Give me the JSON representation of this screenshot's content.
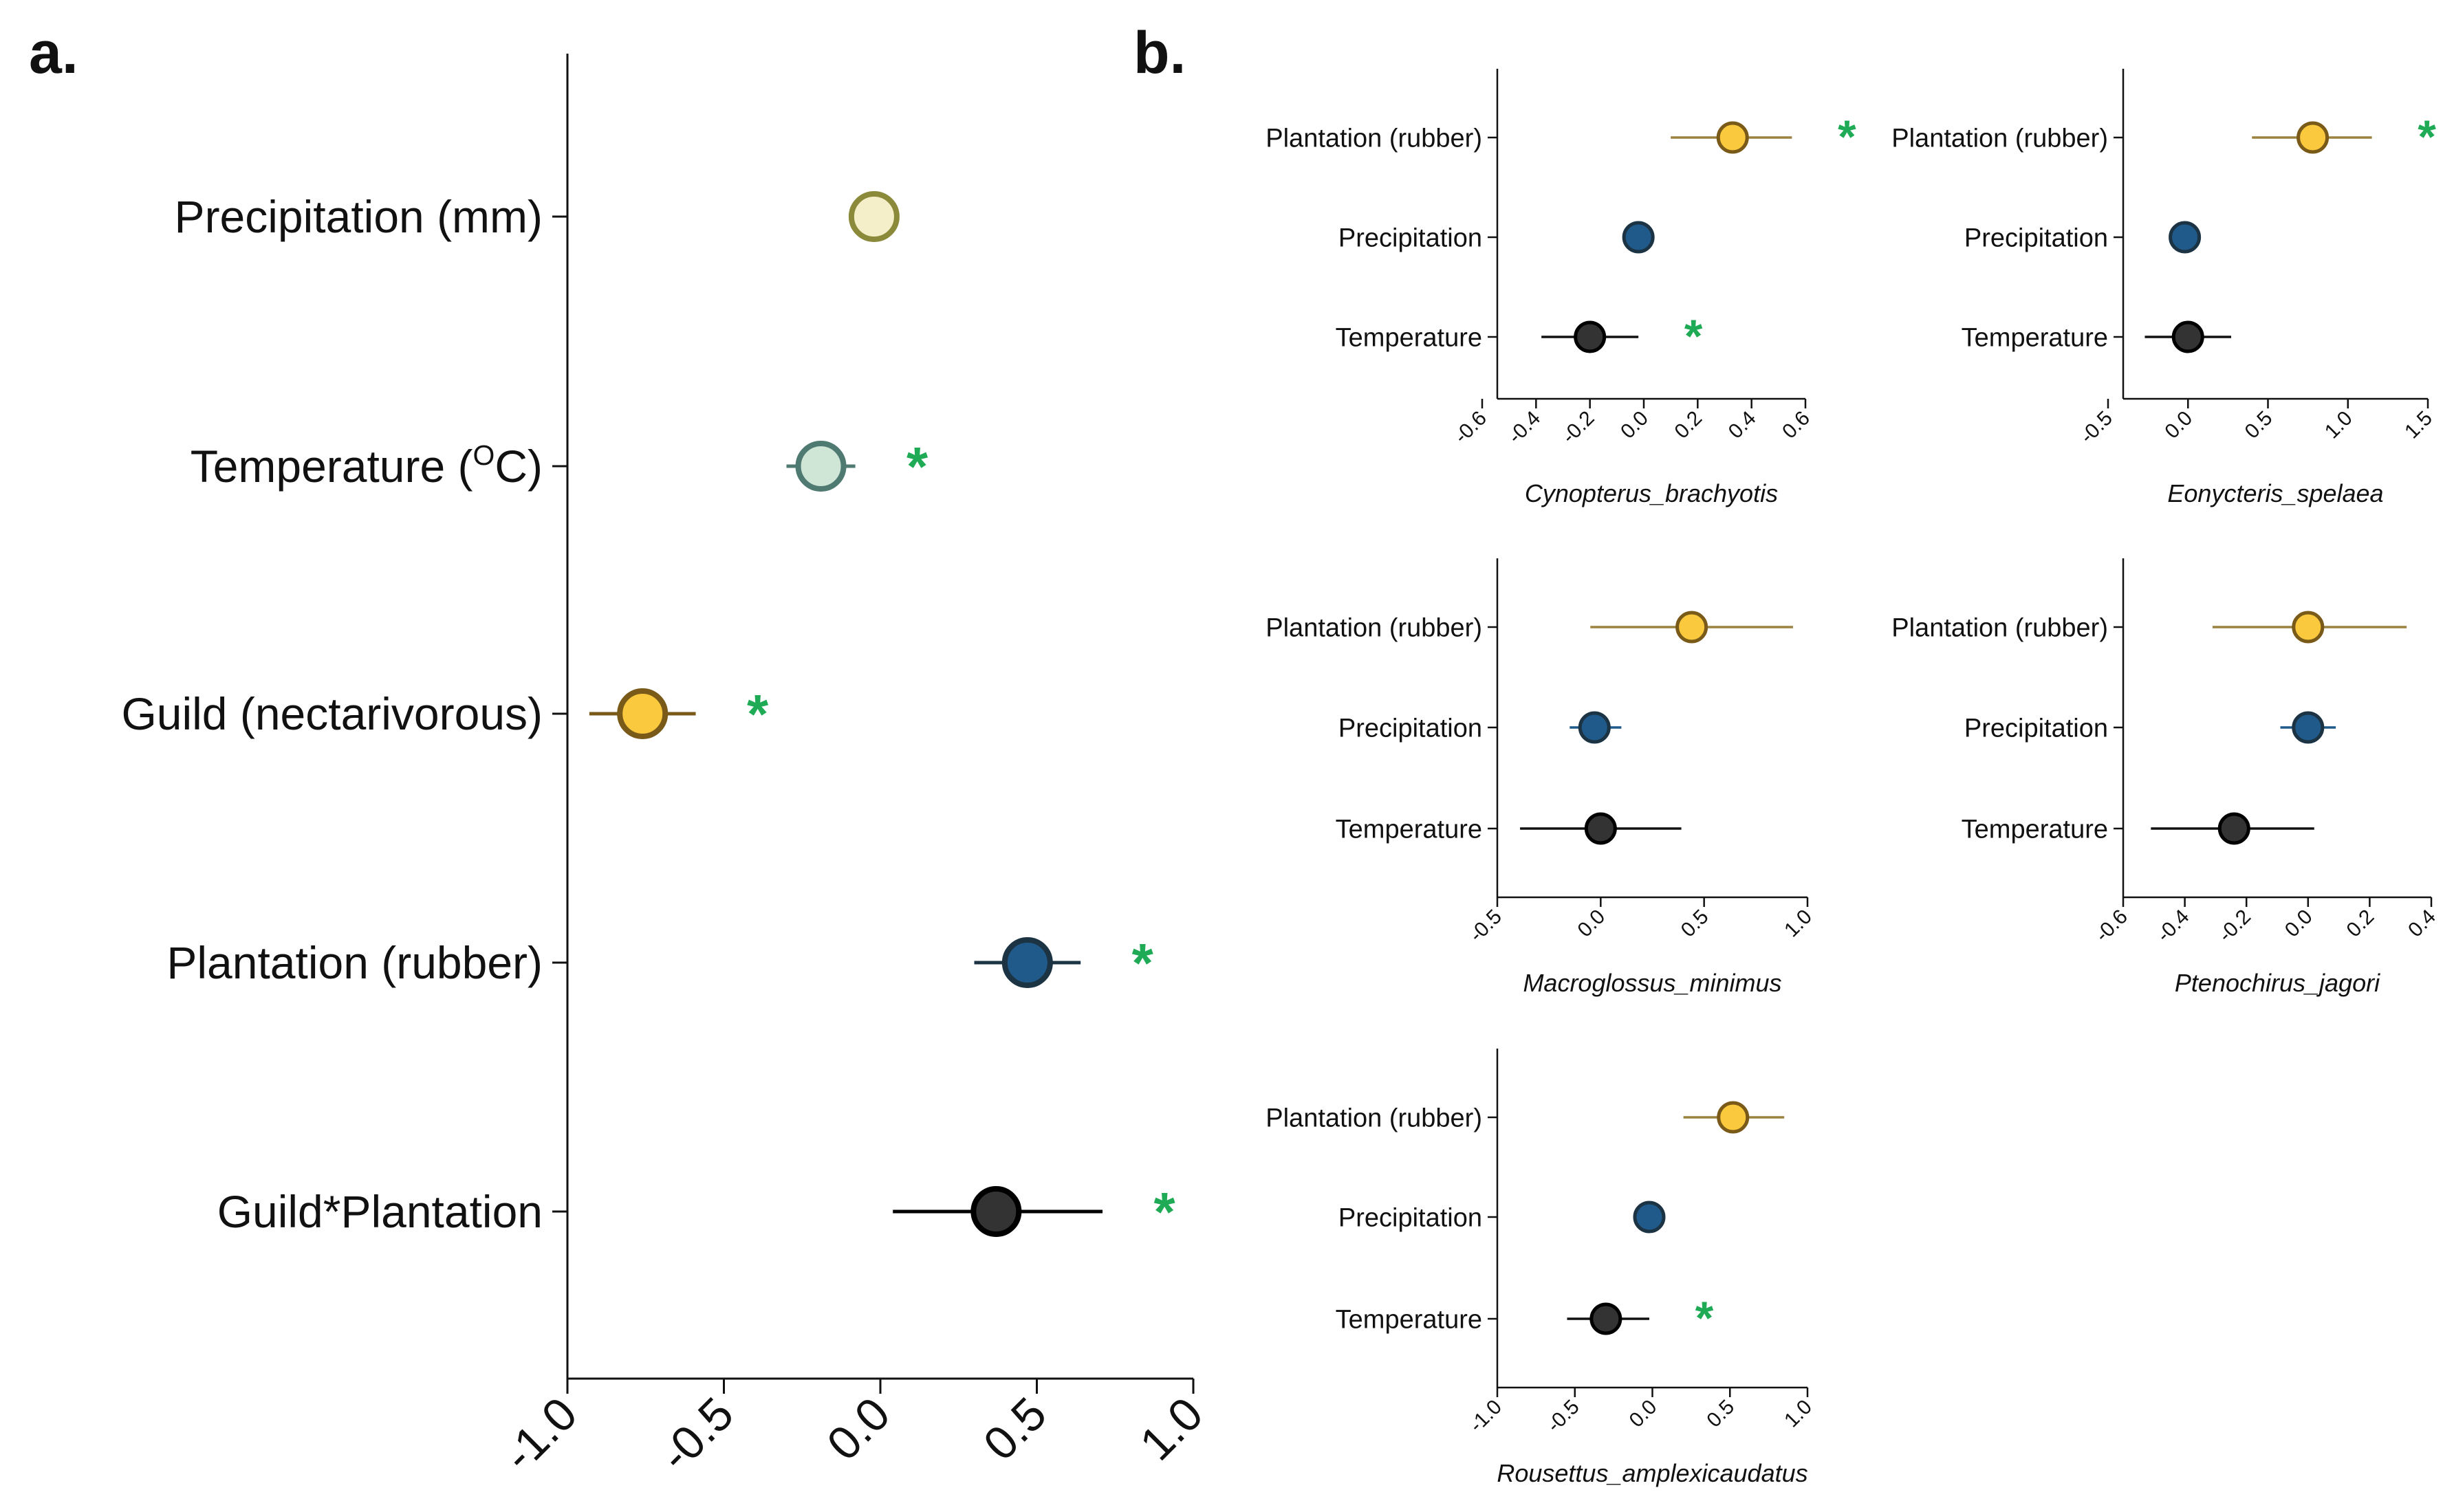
{
  "panels": {
    "a": "a.",
    "b": "b."
  },
  "chart_data": [
    {
      "id": "a",
      "type": "forest",
      "ticks": [
        -1.0,
        -0.5,
        0.0,
        0.5,
        1.0
      ],
      "tick_labels": [
        "-1.0",
        "-0.5",
        "0.0",
        "0.5",
        "1.0"
      ],
      "xlim": [
        -1.0,
        1.0
      ],
      "rows": [
        {
          "label": "Precipitation (mm)",
          "estimate": -0.02,
          "low": -0.02,
          "high": -0.02,
          "significant": false,
          "fill": "#f5efc9",
          "stroke": "#8a8a3a"
        },
        {
          "label": "Temperature (OC)",
          "estimate": -0.19,
          "low": -0.3,
          "high": -0.08,
          "significant": true,
          "fill": "#cfe5d6",
          "stroke": "#4f7a72"
        },
        {
          "label": "Guild (nectarivorous)",
          "estimate": -0.76,
          "low": -0.93,
          "high": -0.59,
          "significant": true,
          "fill": "#fbc93e",
          "stroke": "#7a5a18"
        },
        {
          "label": "Plantation (rubber)",
          "estimate": 0.47,
          "low": 0.3,
          "high": 0.64,
          "significant": true,
          "fill": "#1f5a8a",
          "stroke": "#1c3344"
        },
        {
          "label": "Guild*Plantation",
          "estimate": 0.37,
          "low": 0.04,
          "high": 0.71,
          "significant": true,
          "fill": "#333333",
          "stroke": "#000000"
        }
      ]
    },
    {
      "id": "b1",
      "type": "forest",
      "species": "Cynopterus_brachyotis",
      "ticks": [
        -0.6,
        -0.4,
        -0.2,
        0.0,
        0.2,
        0.4,
        0.6
      ],
      "tick_labels": [
        "-0.6",
        "-0.4",
        "-0.2",
        "0.0",
        "0.2",
        "0.4",
        "0.6"
      ],
      "xlim": [
        -0.6,
        0.6
      ],
      "rows": [
        {
          "label": "Plantation (rubber)",
          "estimate": 0.33,
          "low": 0.1,
          "high": 0.55,
          "significant": true
        },
        {
          "label": "Precipitation",
          "estimate": -0.02,
          "low": -0.02,
          "high": -0.02,
          "significant": false
        },
        {
          "label": "Temperature",
          "estimate": -0.2,
          "low": -0.38,
          "high": -0.02,
          "significant": true
        }
      ]
    },
    {
      "id": "b2",
      "type": "forest",
      "species": "Eonycteris_spelaea",
      "ticks": [
        -0.5,
        0.0,
        0.5,
        1.0,
        1.5
      ],
      "tick_labels": [
        "-0.5",
        "0.0",
        "0.5",
        "1.0",
        "1.5"
      ],
      "xlim": [
        -0.5,
        1.5
      ],
      "rows": [
        {
          "label": "Plantation (rubber)",
          "estimate": 0.78,
          "low": 0.4,
          "high": 1.15,
          "significant": true
        },
        {
          "label": "Precipitation",
          "estimate": -0.02,
          "low": -0.02,
          "high": -0.02,
          "significant": false
        },
        {
          "label": "Temperature",
          "estimate": 0.0,
          "low": -0.27,
          "high": 0.27,
          "significant": false
        }
      ]
    },
    {
      "id": "b3",
      "type": "forest",
      "species": "Macroglossus_minimus",
      "ticks": [
        -0.5,
        0.0,
        0.5,
        1.0
      ],
      "tick_labels": [
        "-0.5",
        "0.0",
        "0.5",
        "1.0"
      ],
      "xlim": [
        -0.5,
        1.0
      ],
      "rows": [
        {
          "label": "Plantation (rubber)",
          "estimate": 0.44,
          "low": -0.05,
          "high": 0.93,
          "significant": false
        },
        {
          "label": "Precipitation",
          "estimate": -0.03,
          "low": -0.15,
          "high": 0.1,
          "significant": false
        },
        {
          "label": "Temperature",
          "estimate": 0.0,
          "low": -0.39,
          "high": 0.39,
          "significant": false
        }
      ]
    },
    {
      "id": "b4",
      "type": "forest",
      "species": "Ptenochirus_jagori",
      "ticks": [
        -0.6,
        -0.4,
        -0.2,
        0.0,
        0.2,
        0.4
      ],
      "tick_labels": [
        "-0.6",
        "-0.4",
        "-0.2",
        "0.0",
        "0.2",
        "0.4"
      ],
      "xlim": [
        -0.6,
        0.4
      ],
      "rows": [
        {
          "label": "Plantation (rubber)",
          "estimate": 0.0,
          "low": -0.31,
          "high": 0.32,
          "significant": false
        },
        {
          "label": "Precipitation",
          "estimate": 0.0,
          "low": -0.09,
          "high": 0.09,
          "significant": false
        },
        {
          "label": "Temperature",
          "estimate": -0.24,
          "low": -0.51,
          "high": 0.02,
          "significant": false
        }
      ]
    },
    {
      "id": "b5",
      "type": "forest",
      "species": "Rousettus_amplexicaudatus",
      "ticks": [
        -1.0,
        -0.5,
        0.0,
        0.5,
        1.0
      ],
      "tick_labels": [
        "-1.0",
        "-0.5",
        "0.0",
        "0.5",
        "1.0"
      ],
      "xlim": [
        -1.0,
        1.0
      ],
      "rows": [
        {
          "label": "Plantation (rubber)",
          "estimate": 0.52,
          "low": 0.2,
          "high": 0.85,
          "significant": false
        },
        {
          "label": "Precipitation",
          "estimate": -0.02,
          "low": -0.02,
          "high": -0.02,
          "significant": false
        },
        {
          "label": "Temperature",
          "estimate": -0.3,
          "low": -0.55,
          "high": -0.02,
          "significant": true
        }
      ]
    }
  ],
  "style": {
    "significance_marker": "*",
    "significance_color": "#1faa55",
    "axis_color": "#111111",
    "b_row_colors": [
      {
        "fill": "#fbc93e",
        "stroke": "#7a5a18",
        "line": "#9a8240"
      },
      {
        "fill": "#1f5a8a",
        "stroke": "#1c3344",
        "line": "#1f5a8a"
      },
      {
        "fill": "#333333",
        "stroke": "#000000",
        "line": "#111111"
      }
    ]
  }
}
